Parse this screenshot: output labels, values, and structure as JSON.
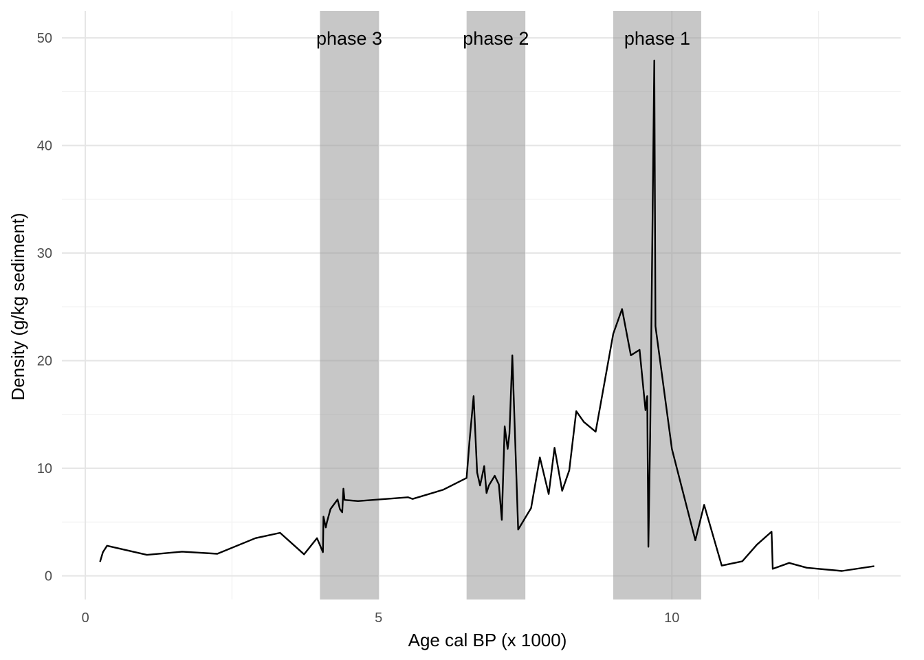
{
  "chart_data": {
    "type": "line",
    "title": "",
    "xlabel": "Age cal BP (x 1000)",
    "ylabel": "Density (g/kg sediment)",
    "xlim": [
      -0.4,
      13.9
    ],
    "ylim": [
      -2.2,
      52.5
    ],
    "x_ticks": [
      0,
      5,
      10
    ],
    "x_tick_labels": [
      "0",
      "5",
      "10"
    ],
    "y_ticks": [
      0,
      10,
      20,
      30,
      40,
      50
    ],
    "y_tick_labels": [
      "0",
      "10",
      "20",
      "30",
      "40",
      "50"
    ],
    "grid": true,
    "legend": "none",
    "colors": {
      "line": "#000000",
      "band": "#999999",
      "grid": "#e5e5e5"
    },
    "phases": [
      {
        "label": "phase 3",
        "start": 4.0,
        "end": 5.0
      },
      {
        "label": "phase 2",
        "start": 6.5,
        "end": 7.5
      },
      {
        "label": "phase 1",
        "start": 9.0,
        "end": 10.5
      }
    ],
    "series": [
      {
        "x": [
          0.25,
          0.3,
          0.37,
          1.05,
          1.65,
          2.25,
          2.9,
          3.32,
          3.73,
          3.95,
          4.05,
          4.06,
          4.1,
          4.12,
          4.18,
          4.3,
          4.34,
          4.38,
          4.4,
          4.42,
          4.65,
          5.5,
          5.58,
          6.1,
          6.5,
          6.55,
          6.62,
          6.68,
          6.73,
          6.8,
          6.84,
          6.88,
          6.98,
          7.05,
          7.1,
          7.15,
          7.2,
          7.23,
          7.28,
          7.38,
          7.6,
          7.75,
          7.9,
          8.0,
          8.13,
          8.25,
          8.37,
          8.5,
          8.7,
          9.0,
          9.15,
          9.3,
          9.45,
          9.55,
          9.58,
          9.6,
          9.63,
          9.7,
          9.72,
          10.0,
          10.4,
          10.55,
          10.85,
          11.2,
          11.45,
          11.7,
          11.72,
          12.0,
          12.3,
          12.9,
          13.45
        ],
        "y": [
          1.3,
          2.2,
          2.8,
          1.95,
          2.25,
          2.05,
          3.5,
          4.0,
          2.0,
          3.5,
          2.2,
          5.5,
          4.5,
          5.0,
          6.2,
          7.1,
          6.2,
          5.9,
          8.1,
          7.05,
          6.95,
          7.3,
          7.15,
          8.0,
          9.1,
          12.5,
          16.7,
          9.6,
          8.4,
          10.2,
          7.7,
          8.4,
          9.3,
          8.5,
          5.2,
          13.9,
          11.8,
          13.2,
          20.5,
          4.3,
          6.3,
          11.0,
          7.6,
          11.9,
          7.9,
          9.8,
          15.3,
          14.3,
          13.4,
          22.5,
          24.8,
          20.5,
          21.0,
          15.4,
          16.7,
          2.7,
          13.0,
          47.9,
          23.2,
          11.8,
          3.3,
          6.6,
          0.95,
          1.35,
          2.9,
          4.1,
          0.65,
          1.2,
          0.75,
          0.45,
          0.9
        ]
      }
    ]
  }
}
